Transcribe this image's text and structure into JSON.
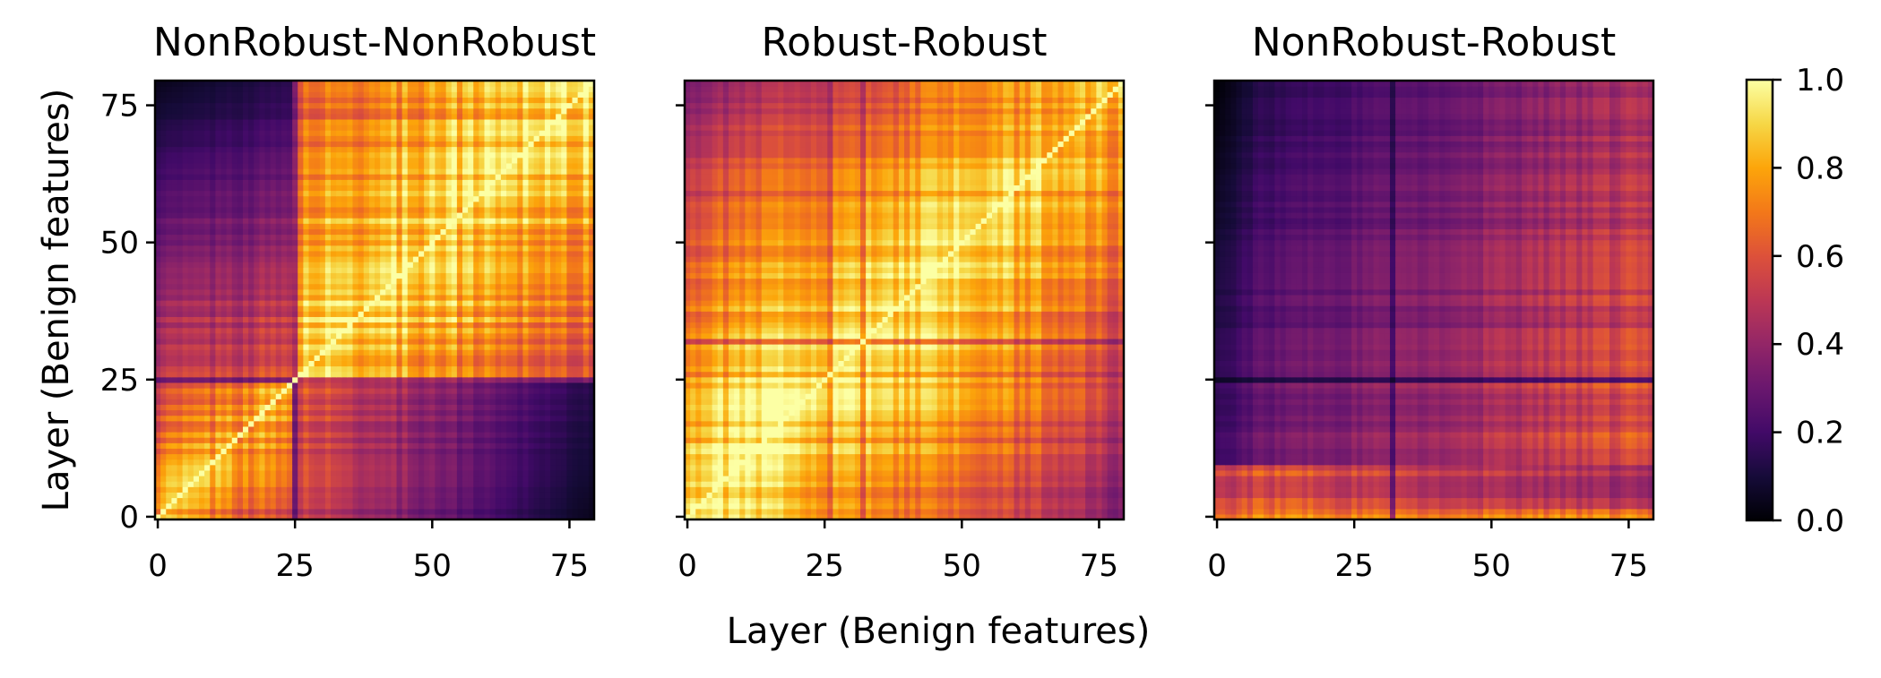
{
  "chart_data": [
    {
      "type": "heatmap",
      "title": "NonRobust-NonRobust",
      "n": 80,
      "pattern": "nonrobust_nonrobust",
      "xlabel": "Layer (Benign features)",
      "ylabel": "Layer (Benign features)",
      "xlim": [
        0,
        80
      ],
      "ylim": [
        0,
        80
      ],
      "xticks": [
        0,
        25,
        50,
        75
      ],
      "yticks": [
        0,
        25,
        50,
        75
      ],
      "xtick_labels": [
        "0",
        "25",
        "50",
        "75"
      ],
      "ytick_labels": [
        "0",
        "25",
        "50",
        "75"
      ],
      "show_ytick_labels": true,
      "structure": {
        "diagonal_value": 1.0,
        "block_boundaries": [
          25
        ],
        "low_region": "top-left and bottom-right corners (~0.1-0.3)",
        "high_region": "upper-right block 25-80 (~0.7-1.0)"
      }
    },
    {
      "type": "heatmap",
      "title": "Robust-Robust",
      "n": 80,
      "pattern": "robust_robust",
      "xlim": [
        0,
        80
      ],
      "ylim": [
        0,
        80
      ],
      "xticks": [
        0,
        25,
        50,
        75
      ],
      "yticks": [
        0,
        25,
        50,
        75
      ],
      "xtick_labels": [
        "0",
        "25",
        "50",
        "75"
      ],
      "ytick_labels": [
        "",
        "",
        "",
        ""
      ],
      "show_ytick_labels": false,
      "structure": {
        "diagonal_value": 1.0,
        "low_region": "top-left corner (~0.3) and far right near bottom (~0.3-0.4)",
        "high_region": "broad band along diagonal, especially 0-40 (~0.9-1.0)"
      }
    },
    {
      "type": "heatmap",
      "title": "NonRobust-Robust",
      "n": 80,
      "pattern": "nonrobust_robust",
      "xlim": [
        0,
        80
      ],
      "ylim": [
        0,
        80
      ],
      "xticks": [
        0,
        25,
        50,
        75
      ],
      "yticks": [
        0,
        25,
        50,
        75
      ],
      "xtick_labels": [
        "0",
        "25",
        "50",
        "75"
      ],
      "ytick_labels": [
        "",
        "",
        "",
        ""
      ],
      "show_ytick_labels": false,
      "structure": {
        "low_region": "top-left (~0.05-0.2)",
        "high_region": "bottom rows and top-right (~0.6-0.8)"
      }
    }
  ],
  "shared_xlabel": "Layer (Benign features)",
  "colorbar": {
    "colormap": "inferno",
    "min": 0.0,
    "max": 1.0,
    "ticks": [
      0.0,
      0.2,
      0.4,
      0.6,
      0.8,
      1.0
    ],
    "tick_labels": [
      "0.0",
      "0.2",
      "0.4",
      "0.6",
      "0.8",
      "1.0"
    ]
  }
}
